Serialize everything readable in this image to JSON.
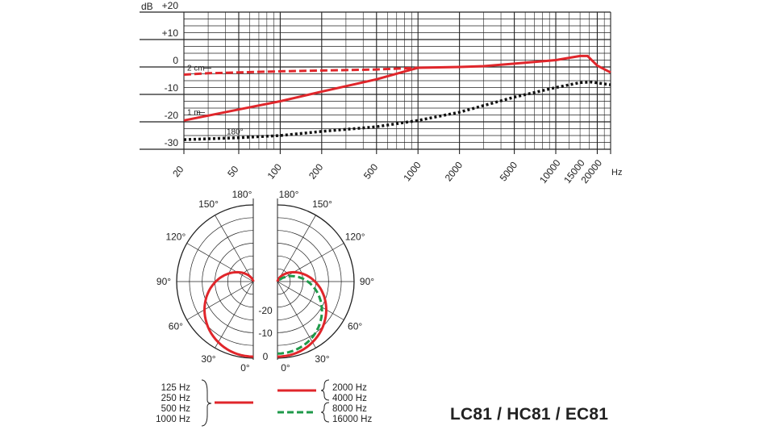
{
  "model_title": "LC81 / HC81 / EC81",
  "chart_data": [
    {
      "type": "line",
      "y_unit_label": "dB",
      "x_unit_label": "Hz",
      "x_scale": "log",
      "xlim": [
        20,
        25000
      ],
      "ylim": [
        -30,
        20
      ],
      "y_ticks": [
        {
          "v": 20,
          "label": "+20"
        },
        {
          "v": 10,
          "label": "+10"
        },
        {
          "v": 0,
          "label": "0"
        },
        {
          "v": -10,
          "label": "-10"
        },
        {
          "v": -20,
          "label": "-20"
        },
        {
          "v": -30,
          "label": "-30"
        }
      ],
      "x_tick_labels": [
        {
          "v": 20,
          "label": "20"
        },
        {
          "v": 50,
          "label": "50"
        },
        {
          "v": 100,
          "label": "100"
        },
        {
          "v": 200,
          "label": "200"
        },
        {
          "v": 500,
          "label": "500"
        },
        {
          "v": 1000,
          "label": "1000"
        },
        {
          "v": 2000,
          "label": "2000"
        },
        {
          "v": 5000,
          "label": "5000"
        },
        {
          "v": 10000,
          "label": "10000"
        },
        {
          "v": 15000,
          "label": "15000"
        },
        {
          "v": 20000,
          "label": "20000"
        }
      ],
      "grid": true,
      "series": [
        {
          "name": "2 cm",
          "color": "#e0262b",
          "style": "dashed-then-solid",
          "solid_from": 1000,
          "points": [
            [
              20,
              -2.8
            ],
            [
              30,
              -2.3
            ],
            [
              50,
              -2.0
            ],
            [
              100,
              -1.6
            ],
            [
              200,
              -1.3
            ],
            [
              500,
              -0.9
            ],
            [
              1000,
              -0.3
            ],
            [
              2000,
              0
            ],
            [
              3000,
              0.3
            ],
            [
              5000,
              1.2
            ],
            [
              10000,
              2.5
            ],
            [
              15000,
              4.0
            ],
            [
              17000,
              4.0
            ],
            [
              20000,
              0.5
            ],
            [
              25000,
              -2
            ]
          ]
        },
        {
          "name": "1 m",
          "color": "#e0262b",
          "style": "solid",
          "points": [
            [
              20,
              -19.5
            ],
            [
              50,
              -15.5
            ],
            [
              100,
              -12.5
            ],
            [
              200,
              -9
            ],
            [
              500,
              -4.5
            ],
            [
              1000,
              -0.3
            ],
            [
              2000,
              0
            ],
            [
              3000,
              0.3
            ],
            [
              5000,
              1.2
            ],
            [
              10000,
              2.5
            ],
            [
              15000,
              4.0
            ],
            [
              17000,
              4.0
            ],
            [
              20000,
              0.5
            ],
            [
              25000,
              -2
            ]
          ]
        },
        {
          "name": "180°",
          "color": "#111111",
          "style": "dotted",
          "points": [
            [
              20,
              -26.5
            ],
            [
              50,
              -25.8
            ],
            [
              100,
              -25
            ],
            [
              200,
              -23.5
            ],
            [
              500,
              -21.8
            ],
            [
              1000,
              -19.5
            ],
            [
              2000,
              -16.5
            ],
            [
              5000,
              -11
            ],
            [
              10000,
              -7.5
            ],
            [
              15000,
              -5.7
            ],
            [
              18000,
              -5.5
            ],
            [
              20000,
              -5.8
            ],
            [
              25000,
              -6.5
            ]
          ]
        }
      ]
    },
    {
      "type": "polar",
      "r_labels": [
        "-20",
        "-10",
        "0"
      ],
      "angle_labels": [
        "0°",
        "30°",
        "60°",
        "90°",
        "120°",
        "150°",
        "180°"
      ],
      "legend_low": {
        "labels": [
          "125 Hz",
          "250 Hz",
          "500 Hz",
          "1000 Hz"
        ],
        "color": "#e0262b",
        "style": "solid"
      },
      "legend_high": [
        {
          "labels": [
            "2000 Hz",
            "4000 Hz"
          ],
          "color": "#e0262b",
          "style": "solid"
        },
        {
          "labels": [
            "8000 Hz",
            "16000 Hz"
          ],
          "color": "#1f9a4a",
          "style": "dashed"
        }
      ],
      "series": [
        {
          "name": "low",
          "color": "#e0262b",
          "style": "solid",
          "side": "left",
          "pattern": "cardioid"
        },
        {
          "name": "2000 Hz / 4000 Hz",
          "color": "#e0262b",
          "style": "solid",
          "side": "right",
          "pattern": "cardioid"
        },
        {
          "name": "8000 Hz / 16000 Hz",
          "color": "#1f9a4a",
          "style": "dashed",
          "side": "right",
          "pattern": "narrow"
        }
      ]
    }
  ]
}
